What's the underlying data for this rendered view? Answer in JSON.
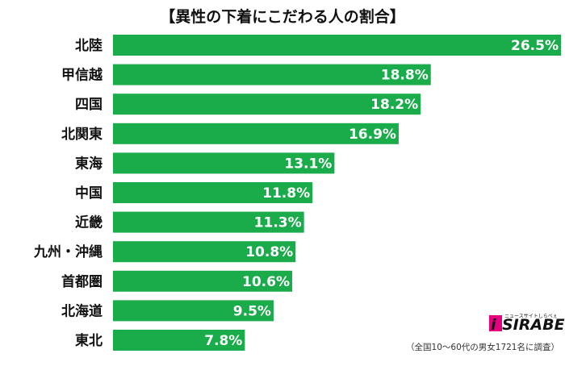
{
  "chart_data": {
    "type": "bar",
    "orientation": "horizontal",
    "title": "【異性の下着にこだわる人の割合】",
    "categories": [
      "北陸",
      "甲信越",
      "四国",
      "北関東",
      "東海",
      "中国",
      "近畿",
      "九州・沖縄",
      "首都圏",
      "北海道",
      "東北"
    ],
    "values": [
      26.5,
      18.8,
      18.2,
      16.9,
      13.1,
      11.8,
      11.3,
      10.8,
      10.6,
      9.5,
      7.8
    ],
    "value_labels": [
      "26.5%",
      "18.8%",
      "18.2%",
      "16.9%",
      "13.1%",
      "11.8%",
      "11.3%",
      "10.8%",
      "10.6%",
      "9.5%",
      "7.8%"
    ],
    "xlim": [
      0,
      26.5
    ],
    "grid": false,
    "bar_color": "#1aab4b"
  },
  "note": "（全国10～60代の男女1721名に調査）",
  "logo": {
    "text": "SIRABEE",
    "tagline": "ニュースサイトしらべぇ",
    "accent_color": "#e5007f"
  }
}
